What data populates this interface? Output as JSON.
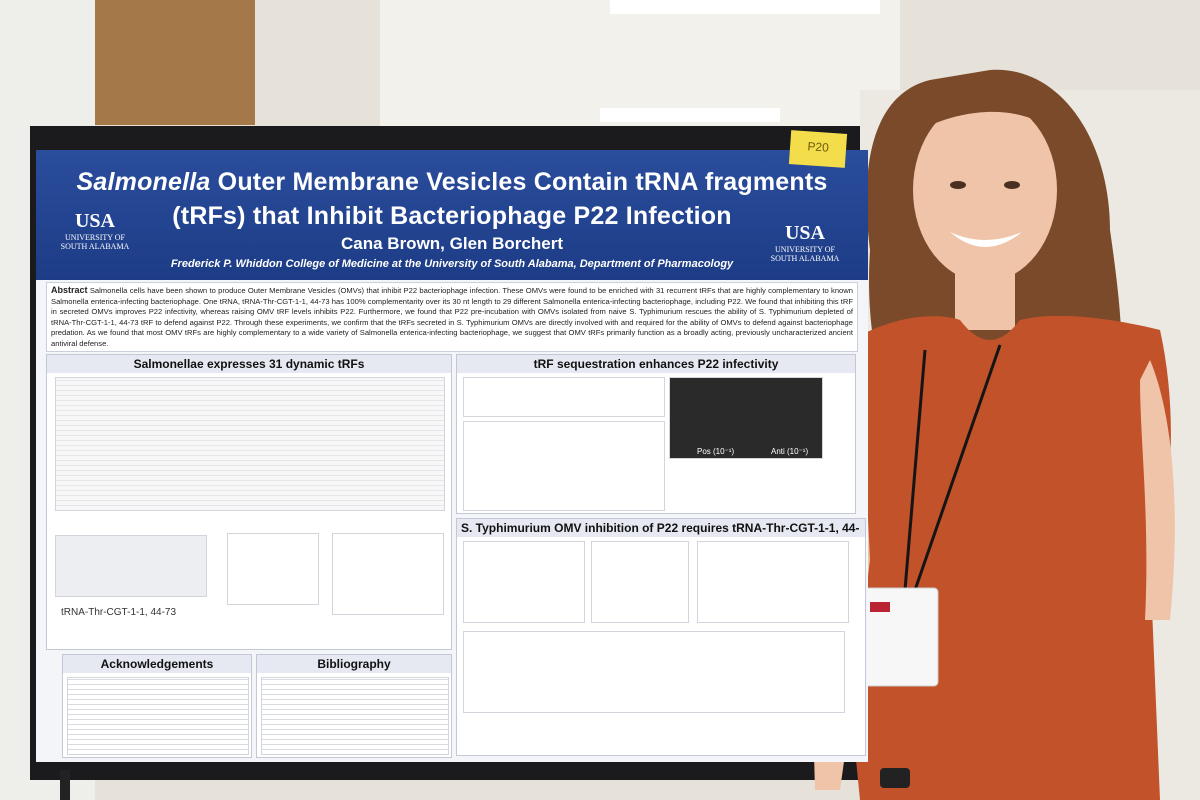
{
  "poster": {
    "title": {
      "italic": "Salmonella",
      "line1": "Outer Membrane Vesicles Contain tRNA fragments",
      "line2": "(tRFs) that Inhibit Bacteriophage P22 Infection"
    },
    "authors": "Cana Brown, Glen Borchert",
    "affiliation": "Frederick P. Whiddon College of Medicine at the University of South Alabama, Department of Pharmacology",
    "logos": [
      {
        "mark": "USA",
        "line1": "UNIVERSITY OF",
        "line2": "SOUTH ALABAMA"
      },
      {
        "mark": "USA",
        "line1": "UNIVERSITY OF",
        "line2": "SOUTH ALABAMA"
      }
    ],
    "abstract": {
      "label": "Abstract",
      "text": "Salmonella cells have been shown to produce Outer Membrane Vesicles (OMVs) that inhibit P22 bacteriophage infection. These OMVs were found to be enriched with 31 recurrent tRFs that are highly complementary to known Salmonella enterica-infecting bacteriophage. One tRNA, tRNA-Thr-CGT-1-1, 44-73 has 100% complementarity over its 30 nt length to 29 different Salmonella enterica-infecting bacteriophage, including P22. We found that inhibiting this tRF in secreted OMVs improves P22 infectivity, whereas raising OMV tRF levels inhibits P22. Furthermore, we found that P22 pre-incubation with OMVs isolated from naive S. Typhimurium rescues the ability of S. Typhimurium depleted of tRNA-Thr-CGT-1-1, 44-73 tRF to defend against P22. Through these experiments, we confirm that the tRFs secreted in S. Typhimurium OMVs are directly involved with and required for the ability of OMVs to defend against bacteriophage predation. As we found that most OMV tRFs are highly complementary to a wide variety of Salmonella enterica-infecting bacteriophage, we suggest that OMV tRFs primarily function as a broadly acting, previously uncharacterized ancient antiviral defense."
    },
    "sections": [
      {
        "heading": "Salmonellae expresses 31 dynamic tRFs",
        "label": "tRNA-Thr-CGT-1-1, 44-73"
      },
      {
        "heading": "tRF sequestration enhances P22 infectivity",
        "plates": [
          "Pos (10⁻¹)",
          "Anti (10⁻¹)"
        ]
      },
      {
        "heading": "S. Typhimurium OMV inhibition of P22 requires tRNA-Thr-CGT-1-1, 44-"
      },
      {
        "heading": "Acknowledgements"
      },
      {
        "heading": "Bibliography"
      }
    ],
    "sticky_note": "P20"
  }
}
